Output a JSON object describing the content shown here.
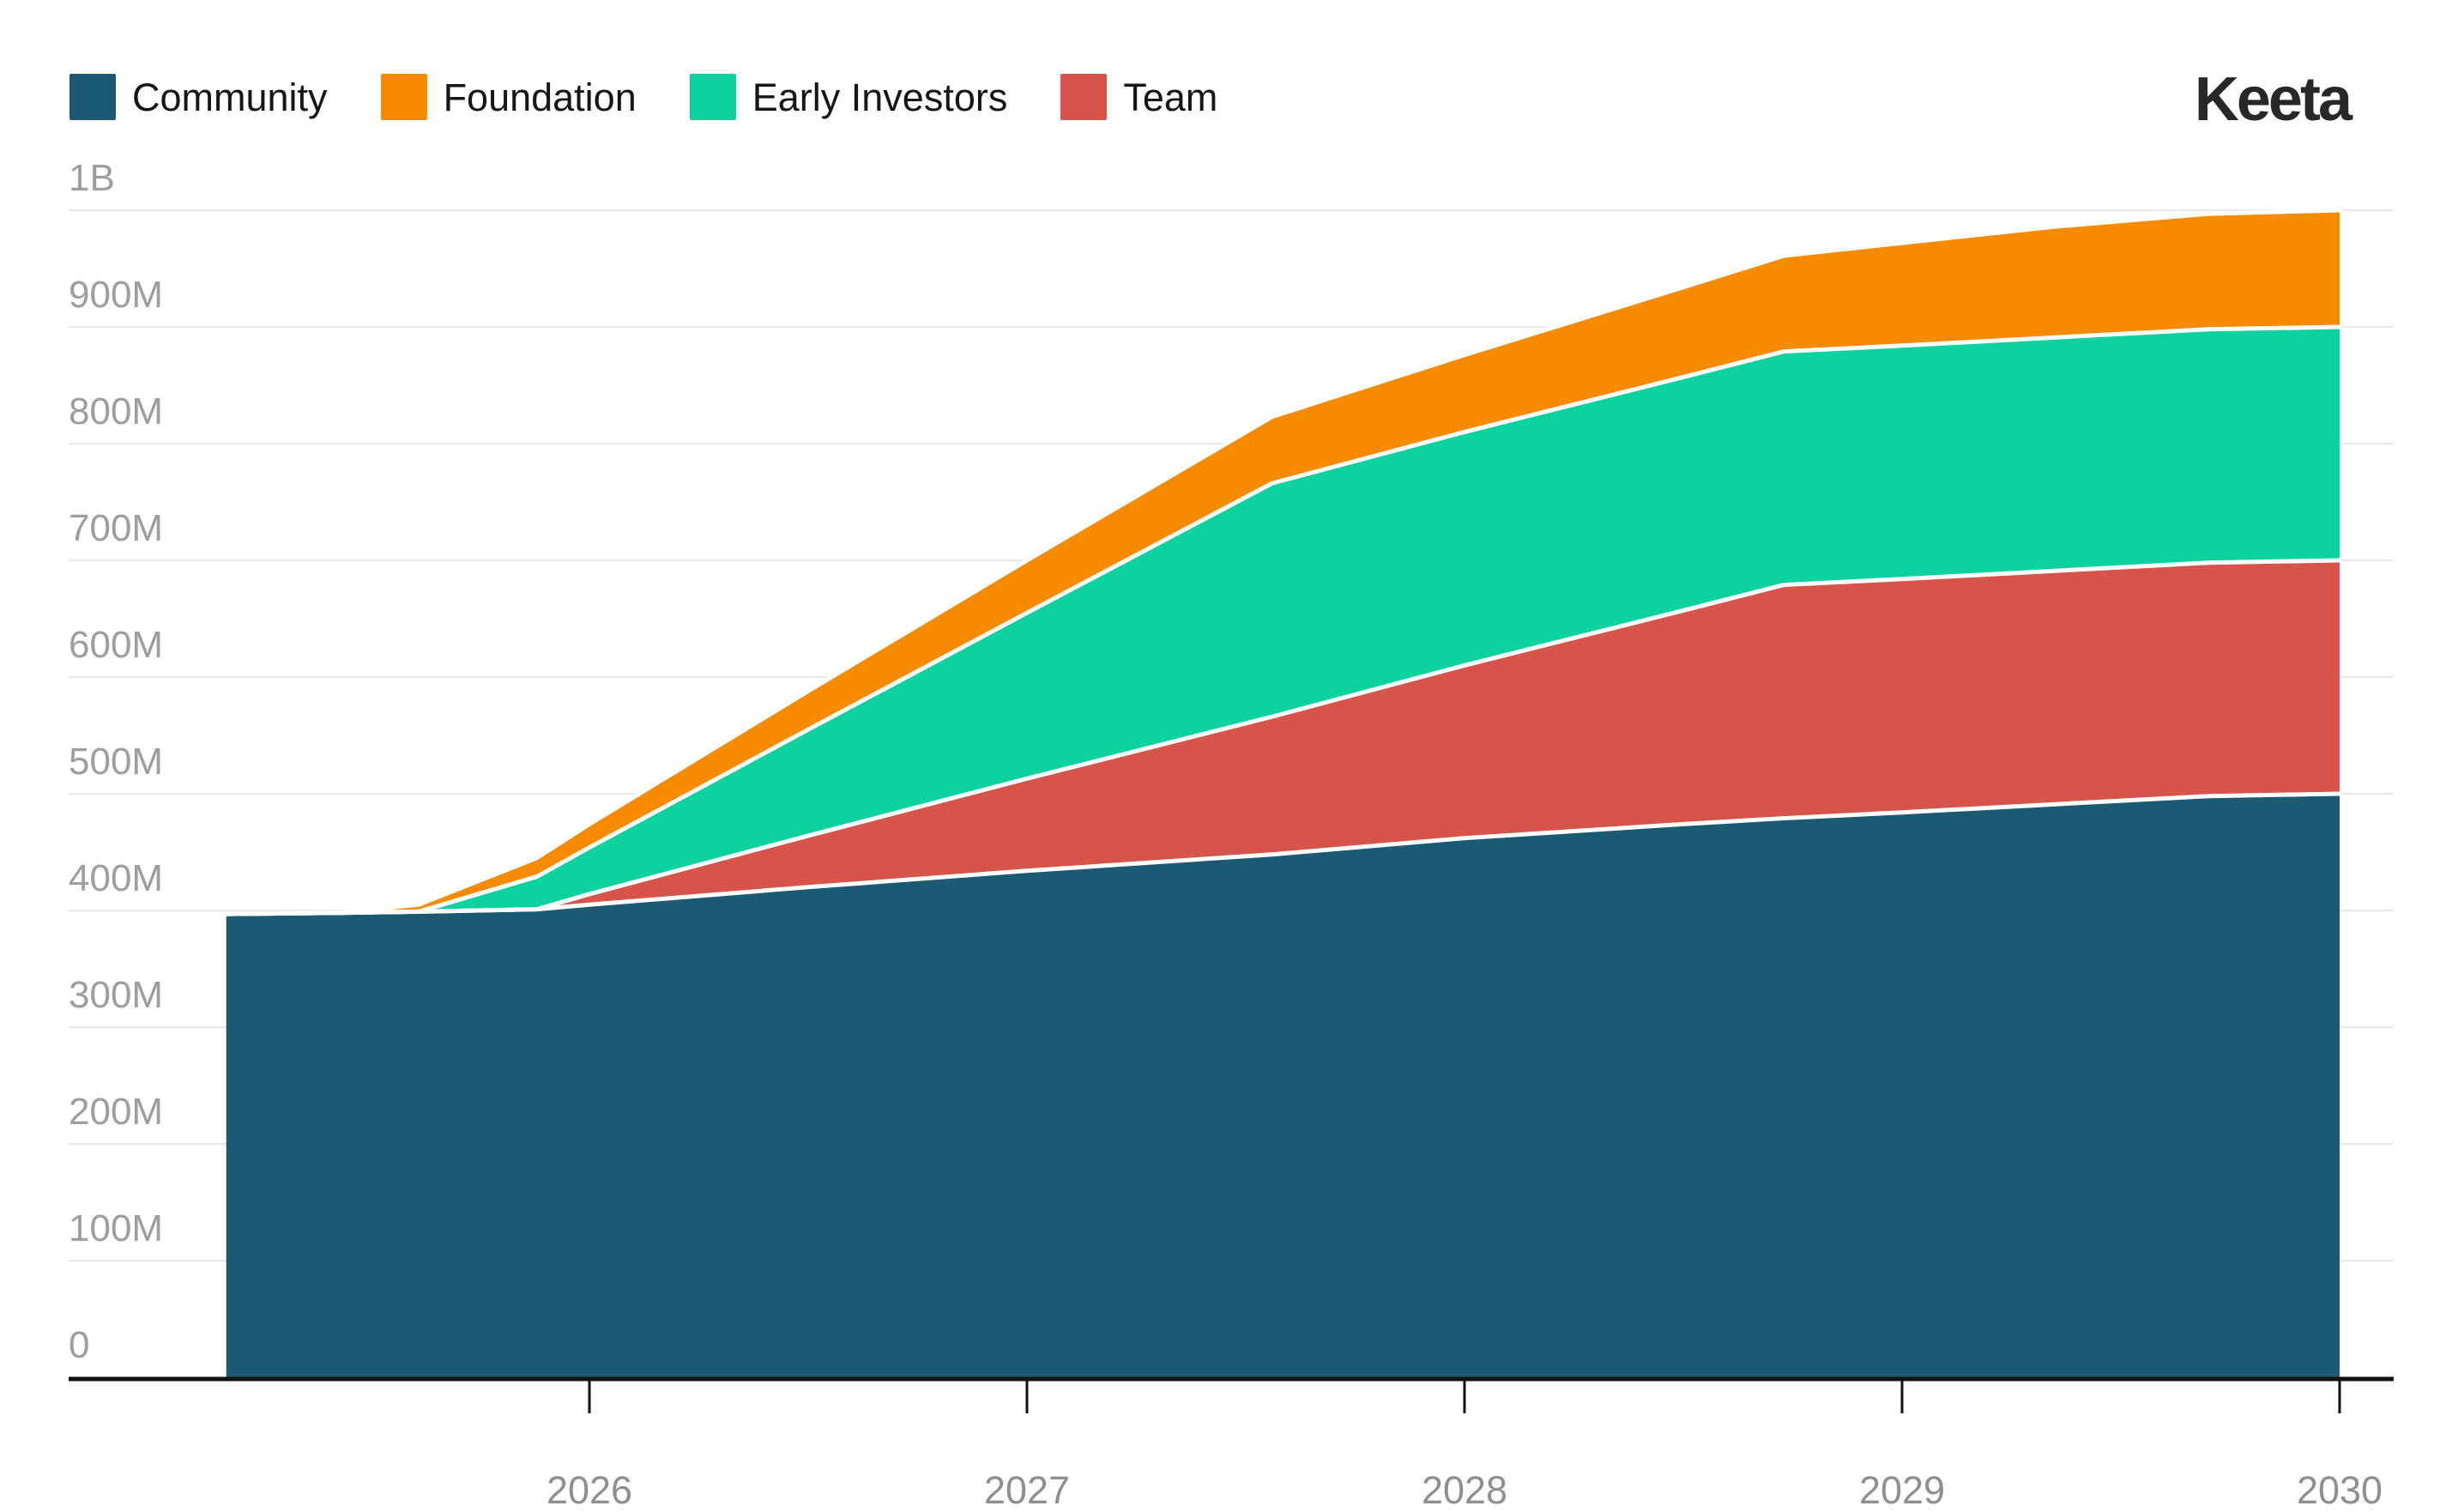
{
  "brand": {
    "logo_text": "Keeta"
  },
  "legend": {
    "items": [
      {
        "label": "Community",
        "color": "#1b5a72"
      },
      {
        "label": "Foundation",
        "color": "#f78b00"
      },
      {
        "label": "Early Investors",
        "color": "#0cd2a0"
      },
      {
        "label": "Team",
        "color": "#d6544a"
      }
    ]
  },
  "chart_data": {
    "type": "area",
    "stacked": true,
    "title": "",
    "xlabel": "",
    "ylabel": "",
    "unit": "tokens (millions)",
    "grid": true,
    "legend_position": "top-left",
    "xlim": [
      2025.17,
      2030
    ],
    "ylim": [
      0,
      1000
    ],
    "x": [
      2025.17,
      2025.43,
      2025.61,
      2025.88,
      2026,
      2026.5,
      2027,
      2027.56,
      2028,
      2028.5,
      2028.73,
      2029,
      2029.35,
      2029.7,
      2030
    ],
    "series": [
      {
        "name": "Community",
        "color": "#1b5a72",
        "final_total_millions": 500,
        "values": [
          397,
          398,
          399,
          401,
          405,
          420,
          434,
          448,
          462,
          474,
          479,
          484,
          491,
          498,
          500
        ]
      },
      {
        "name": "Team",
        "color": "#d6544a",
        "final_total_millions": 200,
        "values": [
          0,
          0,
          0,
          0,
          9,
          44,
          79,
          118,
          148,
          183,
          200,
          200,
          200,
          200,
          200
        ]
      },
      {
        "name": "Early Investors",
        "color": "#0cd2a0",
        "final_total_millions": 200,
        "values": [
          0,
          0,
          0,
          28,
          40,
          91,
          142,
          200,
          200,
          200,
          200,
          200,
          200,
          200,
          200
        ]
      },
      {
        "name": "Foundation",
        "color": "#f78b00",
        "final_total_millions": 100,
        "values": [
          0,
          0,
          6,
          16,
          20,
          33,
          45,
          57,
          66,
          77,
          82,
          88,
          95,
          99,
          100
        ]
      }
    ],
    "yticks": [
      {
        "value": 0,
        "label": "0"
      },
      {
        "value": 100,
        "label": "100M"
      },
      {
        "value": 200,
        "label": "200M"
      },
      {
        "value": 300,
        "label": "300M"
      },
      {
        "value": 400,
        "label": "400M"
      },
      {
        "value": 500,
        "label": "500M"
      },
      {
        "value": 600,
        "label": "600M"
      },
      {
        "value": 700,
        "label": "700M"
      },
      {
        "value": 800,
        "label": "800M"
      },
      {
        "value": 900,
        "label": "900M"
      },
      {
        "value": 1000,
        "label": "1B"
      }
    ],
    "xticks": [
      {
        "value": 2026,
        "label": "2026"
      },
      {
        "value": 2027,
        "label": "2027"
      },
      {
        "value": 2028,
        "label": "2028"
      },
      {
        "value": 2029,
        "label": "2029"
      },
      {
        "value": 2030,
        "label": "2030"
      }
    ],
    "colors": {
      "gridline": "#e8e8e8",
      "axis": "#111111",
      "tick_label": "#9e9e9e",
      "series_separator": "#ffffff",
      "background": "#ffffff"
    }
  }
}
